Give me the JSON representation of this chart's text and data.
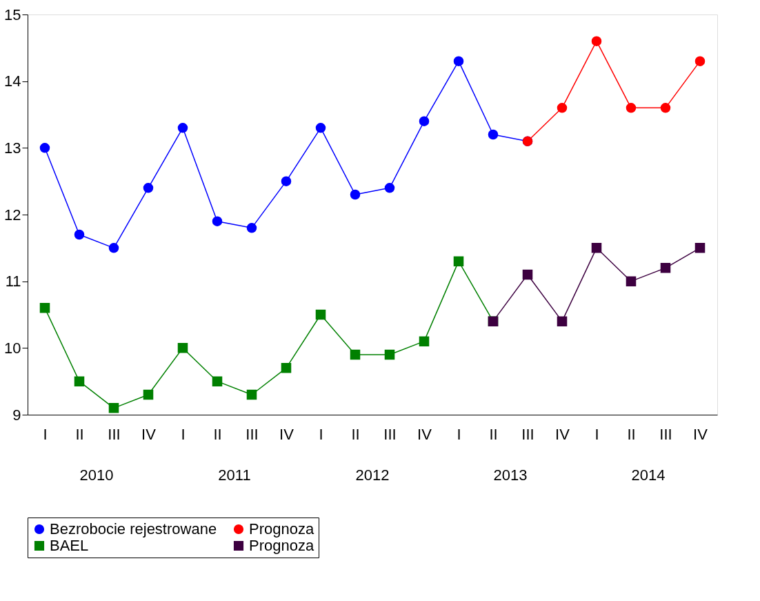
{
  "chart_data": {
    "type": "line",
    "categories": [
      "I",
      "II",
      "III",
      "IV",
      "I",
      "II",
      "III",
      "IV",
      "I",
      "II",
      "III",
      "IV",
      "I",
      "II",
      "III",
      "IV",
      "I",
      "II",
      "III",
      "IV"
    ],
    "annotations": [
      "2010",
      "2011",
      "2012",
      "2013",
      "2014"
    ],
    "series": [
      {
        "name": "Bezrobocie rejestrowane",
        "color": "#0000ff",
        "marker": "circle",
        "values": [
          13.0,
          11.7,
          11.5,
          12.4,
          13.3,
          11.9,
          11.8,
          12.5,
          13.3,
          12.3,
          12.4,
          13.4,
          14.3,
          13.2,
          13.1,
          null,
          null,
          null,
          null,
          null
        ]
      },
      {
        "name": "Prognoza",
        "color": "#ff0000",
        "marker": "circle",
        "values": [
          null,
          null,
          null,
          null,
          null,
          null,
          null,
          null,
          null,
          null,
          null,
          null,
          null,
          null,
          13.1,
          13.6,
          14.6,
          13.6,
          13.6,
          14.3
        ]
      },
      {
        "name": "BAEL",
        "color": "#008000",
        "marker": "square",
        "values": [
          10.6,
          9.5,
          9.1,
          9.3,
          10.0,
          9.5,
          9.3,
          9.7,
          10.5,
          9.9,
          9.9,
          10.1,
          11.3,
          10.4,
          null,
          null,
          null,
          null,
          null,
          null
        ]
      },
      {
        "name": "Prognoza",
        "color": "#3d0040",
        "marker": "square",
        "values": [
          null,
          null,
          null,
          null,
          null,
          null,
          null,
          null,
          null,
          null,
          null,
          null,
          null,
          10.4,
          11.1,
          10.4,
          11.5,
          11.0,
          11.2,
          11.5
        ]
      }
    ],
    "ylim": [
      9,
      15
    ],
    "yticks": [
      9,
      10,
      11,
      12,
      13,
      14,
      15
    ],
    "grid": false,
    "legend": "bottom",
    "line_style": "solid"
  }
}
